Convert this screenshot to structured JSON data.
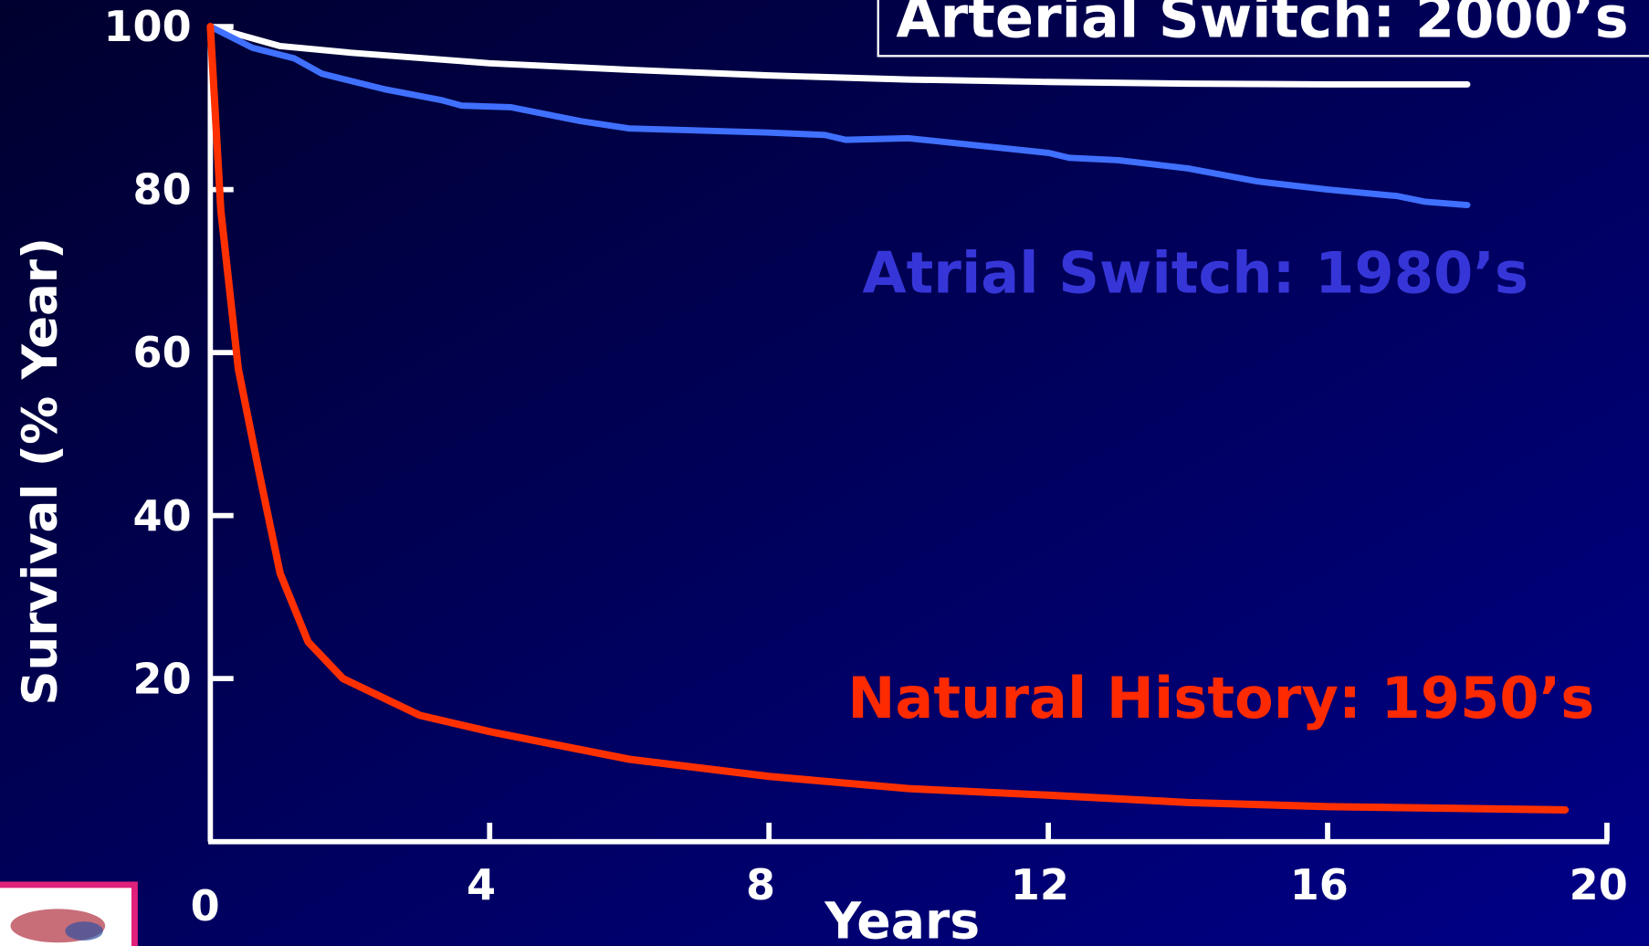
{
  "chart_data": {
    "type": "line",
    "x_label": "Years",
    "y_label": "Survival (% Year)",
    "xlim": [
      0,
      20
    ],
    "xticks": [
      0,
      4,
      8,
      12,
      16,
      20
    ],
    "ylim": [
      0,
      100
    ],
    "yticks": [
      20,
      40,
      60,
      80,
      100
    ],
    "series": [
      {
        "name": "Arterial Switch: 2000’s",
        "color": "#ffffff",
        "x": [
          0,
          0.5,
          1,
          2,
          4,
          6,
          8,
          10,
          12,
          14,
          16,
          18
        ],
        "values": [
          100,
          98.8,
          97.6,
          96.8,
          95.5,
          94.7,
          94.0,
          93.5,
          93.2,
          93.0,
          92.9,
          92.9
        ]
      },
      {
        "name": "Atrial Switch: 1980’s",
        "color": "#4070ff",
        "x": [
          0,
          0.3,
          0.6,
          1.2,
          1.6,
          2.5,
          3.3,
          3.6,
          4.3,
          5.3,
          6,
          8,
          8.8,
          9.1,
          10,
          12,
          12.3,
          13,
          14,
          15,
          16,
          17,
          17.4,
          18
        ],
        "values": [
          100,
          98.7,
          97.4,
          96.1,
          94.2,
          92.3,
          91.0,
          90.3,
          90.1,
          88.4,
          87.5,
          87.0,
          86.7,
          86.1,
          86.3,
          84.5,
          83.9,
          83.6,
          82.6,
          81.0,
          80.0,
          79.2,
          78.5,
          78.1
        ]
      },
      {
        "name": "Natural History: 1950’s",
        "color": "#ff3000",
        "x": [
          0,
          0.15,
          0.4,
          0.7,
          1,
          1.4,
          1.9,
          3,
          4,
          6,
          8,
          10,
          12,
          14,
          16,
          19.4
        ],
        "values": [
          100,
          77.4,
          58.0,
          45.2,
          32.9,
          24.5,
          20.0,
          15.5,
          13.5,
          10.1,
          8.0,
          6.5,
          5.7,
          4.8,
          4.3,
          3.9
        ]
      }
    ]
  }
}
